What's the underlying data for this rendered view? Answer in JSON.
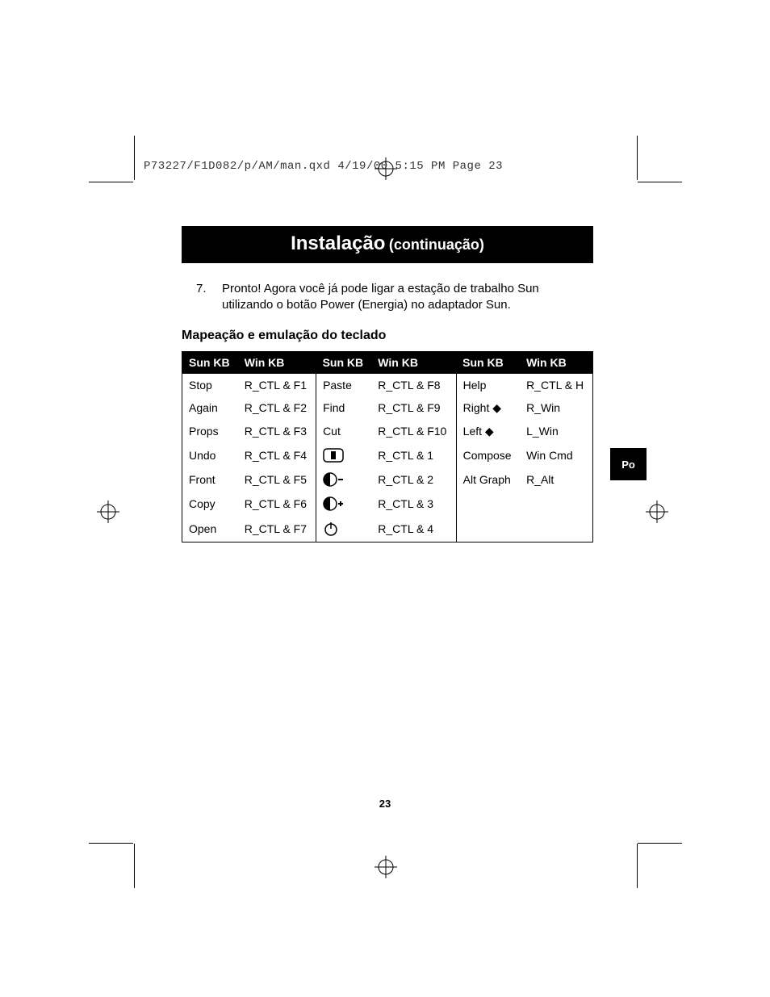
{
  "print_header": "P73227/F1D082/p/AM/man.qxd  4/19/00  5:15 PM  Page 23",
  "title": {
    "main": "Instalação",
    "sub": "(continuação)"
  },
  "step": {
    "number": "7.",
    "text": "Pronto! Agora você já pode ligar a estação de trabalho Sun utilizando o botão Power (Energia) no adaptador Sun."
  },
  "subheading": "Mapeação e emulação do teclado",
  "table": {
    "headers": [
      "Sun KB",
      "Win KB",
      "Sun KB",
      "Win KB",
      "Sun KB",
      "Win KB"
    ],
    "rows": [
      {
        "c0": "Stop",
        "c1": "R_CTL & F1",
        "c2": "Paste",
        "c3": "R_CTL & F8",
        "c4": "Help",
        "c5": "R_CTL & H"
      },
      {
        "c0": "Again",
        "c1": "R_CTL & F2",
        "c2": "Find",
        "c3": "R_CTL & F9",
        "c4": "Right ◆",
        "c5": "R_Win"
      },
      {
        "c0": "Props",
        "c1": "R_CTL & F3",
        "c2": "Cut",
        "c3": "R_CTL & F10",
        "c4": "Left  ◆",
        "c5": "L_Win"
      },
      {
        "c0": "Undo",
        "c1": "R_CTL & F4",
        "c2icon": "mute",
        "c3": "R_CTL & 1",
        "c4": "Compose",
        "c5": "Win Cmd"
      },
      {
        "c0": "Front",
        "c1": "R_CTL & F5",
        "c2icon": "vol-down",
        "c3": "R_CTL & 2",
        "c4": "Alt Graph",
        "c5": "R_Alt"
      },
      {
        "c0": "Copy",
        "c1": "R_CTL & F6",
        "c2icon": "vol-up",
        "c3": "R_CTL & 3",
        "c4": "",
        "c5": ""
      },
      {
        "c0": "Open",
        "c1": "R_CTL & F7",
        "c2icon": "power",
        "c3": "R_CTL & 4",
        "c4": "",
        "c5": ""
      }
    ]
  },
  "side_tab": "Po",
  "page_number": "23",
  "colors": {
    "bg": "#ffffff",
    "fg": "#000000"
  }
}
